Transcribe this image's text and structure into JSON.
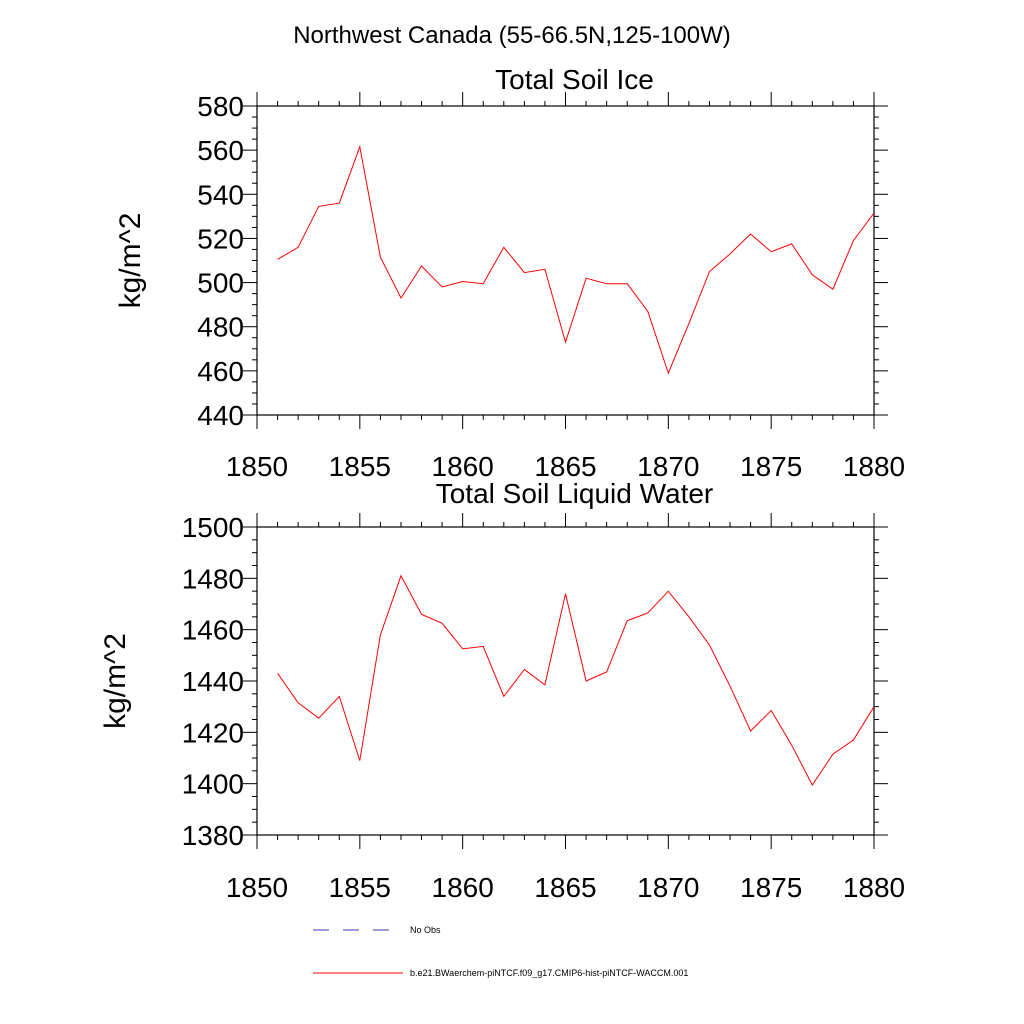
{
  "header": {
    "title": "Northwest Canada (55-66.5N,125-100W)"
  },
  "colors": {
    "series": "#ff0000",
    "no_obs": "#3b3ba8",
    "axis": "#000000"
  },
  "chart_data": [
    {
      "type": "line",
      "title": "Total Soil Ice",
      "xlabel": "",
      "ylabel": "kg/m^2",
      "xlim": [
        1850,
        1880
      ],
      "ylim": [
        440,
        580
      ],
      "x_ticks": [
        1850,
        1855,
        1860,
        1865,
        1870,
        1875,
        1880
      ],
      "y_ticks": [
        440,
        460,
        480,
        500,
        520,
        540,
        560,
        580
      ],
      "y_minor_step": 5,
      "x_minor_step": 1,
      "grid": false,
      "series": [
        {
          "name": "b.e21.BWaerchem-piNTCF.f09_g17.CMIP6-hist-piNTCF-WACCM.001",
          "x": [
            1851,
            1852,
            1853,
            1854,
            1855,
            1856,
            1857,
            1858,
            1859,
            1860,
            1861,
            1862,
            1863,
            1864,
            1865,
            1866,
            1867,
            1868,
            1869,
            1870,
            1871,
            1872,
            1873,
            1874,
            1875,
            1876,
            1877,
            1878,
            1879,
            1880
          ],
          "values": [
            510.5,
            516,
            534.5,
            536,
            561.5,
            511.5,
            493,
            507.5,
            498,
            500.5,
            499.5,
            516,
            504.5,
            506,
            473,
            502,
            499.5,
            499.5,
            487,
            459,
            481.5,
            505,
            513,
            522,
            514,
            517.5,
            503.5,
            497,
            519,
            531.5
          ]
        }
      ]
    },
    {
      "type": "line",
      "title": "Total Soil Liquid Water",
      "xlabel": "",
      "ylabel": "kg/m^2",
      "xlim": [
        1850,
        1880
      ],
      "ylim": [
        1380,
        1500
      ],
      "x_ticks": [
        1850,
        1855,
        1860,
        1865,
        1870,
        1875,
        1880
      ],
      "y_ticks": [
        1380,
        1400,
        1420,
        1440,
        1460,
        1480,
        1500
      ],
      "y_minor_step": 5,
      "x_minor_step": 1,
      "grid": false,
      "series": [
        {
          "name": "b.e21.BWaerchem-piNTCF.f09_g17.CMIP6-hist-piNTCF-WACCM.001",
          "x": [
            1851,
            1852,
            1853,
            1854,
            1855,
            1856,
            1857,
            1858,
            1859,
            1860,
            1861,
            1862,
            1863,
            1864,
            1865,
            1866,
            1867,
            1868,
            1869,
            1870,
            1871,
            1872,
            1873,
            1874,
            1875,
            1876,
            1877,
            1878,
            1879,
            1880
          ],
          "values": [
            1443,
            1431.5,
            1425.5,
            1434,
            1409,
            1458,
            1481,
            1466,
            1462.5,
            1452.5,
            1453.5,
            1434,
            1444.5,
            1438.5,
            1474,
            1440,
            1443.5,
            1463.5,
            1466.5,
            1475,
            1465,
            1454,
            1438,
            1420.5,
            1428.5,
            1415,
            1399.5,
            1411.5,
            1417,
            1430
          ]
        }
      ]
    }
  ],
  "legend": {
    "placement": "bottom",
    "items": [
      {
        "label": "No Obs",
        "style": "dashed"
      },
      {
        "label": "b.e21.BWaerchem-piNTCF.f09_g17.CMIP6-hist-piNTCF-WACCM.001",
        "style": "solid"
      }
    ]
  }
}
